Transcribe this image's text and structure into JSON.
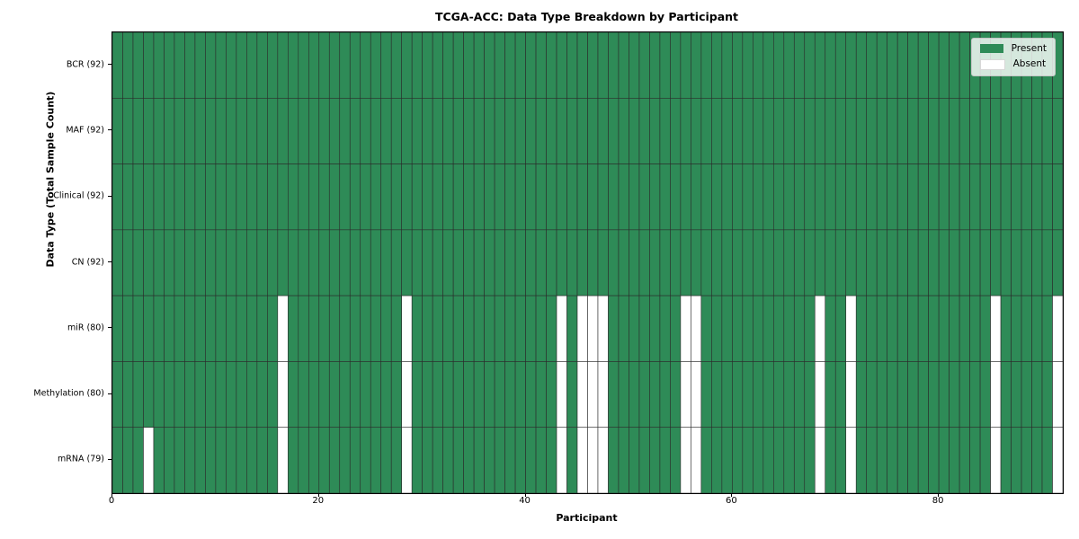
{
  "figure": {
    "title": "TCGA-ACC: Data Type Breakdown by Participant"
  },
  "chart_data": {
    "type": "heatmap",
    "title": "TCGA-ACC: Data Type Breakdown by Participant",
    "xlabel": "Participant",
    "ylabel": "Data Type (Total Sample Count)",
    "xlim": [
      0,
      92
    ],
    "n_participants": 92,
    "x_ticks": [
      0,
      20,
      40,
      60,
      80
    ],
    "grid": true,
    "rows": [
      {
        "name": "BCR",
        "label": "BCR (92)",
        "present_count": 92,
        "absent_participants": []
      },
      {
        "name": "MAF",
        "label": "MAF (92)",
        "present_count": 92,
        "absent_participants": []
      },
      {
        "name": "Clinical",
        "label": "Clinical (92)",
        "present_count": 92,
        "absent_participants": []
      },
      {
        "name": "CN",
        "label": "CN (92)",
        "present_count": 92,
        "absent_participants": []
      },
      {
        "name": "miR",
        "label": "miR (80)",
        "present_count": 80,
        "absent_participants": [
          16,
          28,
          43,
          45,
          46,
          47,
          55,
          56,
          68,
          71,
          85,
          91
        ]
      },
      {
        "name": "Methylation",
        "label": "Methylation (80)",
        "present_count": 80,
        "absent_participants": [
          16,
          28,
          43,
          45,
          46,
          47,
          55,
          56,
          68,
          71,
          85,
          91
        ]
      },
      {
        "name": "mRNA",
        "label": "mRNA (79)",
        "present_count": 79,
        "absent_participants": [
          3,
          16,
          28,
          43,
          45,
          46,
          47,
          55,
          56,
          68,
          71,
          85,
          91
        ]
      }
    ],
    "legend": {
      "position": "upper right",
      "entries": [
        {
          "label": "Present",
          "color": "#2e8b57"
        },
        {
          "label": "Absent",
          "color": "#ffffff"
        }
      ]
    },
    "colors": {
      "present": "#2e8b57",
      "absent": "#ffffff",
      "cell_line": "#2b2b2b",
      "frame": "#000000"
    }
  }
}
